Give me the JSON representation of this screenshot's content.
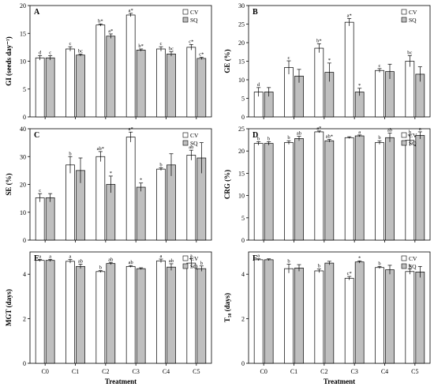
{
  "figure": {
    "xlabel": "Treatment"
  },
  "legend": {
    "cv": "CV",
    "sq": "SQ"
  },
  "colors": {
    "cv": "#ffffff",
    "sq": "#bfbfbf",
    "stroke": "#000000"
  },
  "chart_data": [
    {
      "panel": "A",
      "type": "bar",
      "ylabel": "GI (seeds day⁻¹)",
      "ylim": [
        0,
        20
      ],
      "yticks": [
        0,
        5,
        10,
        15,
        20
      ],
      "categories": [
        "C0",
        "C1",
        "C2",
        "C3",
        "C4",
        "C5"
      ],
      "series": [
        {
          "name": "CV",
          "values": [
            10.6,
            12.2,
            16.5,
            18.3,
            12.2,
            12.5
          ],
          "errors": [
            0.4,
            0.4,
            0.2,
            0.3,
            0.4,
            0.5
          ],
          "labels": [
            "d",
            "c",
            "b*",
            "a*",
            "c",
            "c*"
          ]
        },
        {
          "name": "SQ",
          "values": [
            10.6,
            11.1,
            14.5,
            12.0,
            11.3,
            10.5
          ],
          "errors": [
            0.4,
            0.2,
            0.4,
            0.2,
            0.4,
            0.2
          ],
          "labels": [
            "c",
            "bc",
            "a*",
            "b*",
            "bc",
            "c*"
          ]
        }
      ],
      "legend_position": "top-right"
    },
    {
      "panel": "B",
      "type": "bar",
      "ylabel": "GE (%)",
      "ylim": [
        0,
        30
      ],
      "yticks": [
        0,
        5,
        10,
        15,
        20,
        25,
        30
      ],
      "categories": [
        "C0",
        "C1",
        "C2",
        "C3",
        "C4",
        "C5"
      ],
      "series": [
        {
          "name": "CV",
          "values": [
            6.7,
            13.3,
            18.5,
            25.5,
            12.5,
            15.0
          ],
          "errors": [
            1.2,
            1.8,
            1.2,
            1.0,
            0.5,
            1.5
          ],
          "labels": [
            "d",
            "c",
            "b*",
            "a*",
            "c",
            "bc"
          ]
        },
        {
          "name": "SQ",
          "values": [
            6.7,
            11.0,
            12.0,
            6.7,
            12.2,
            11.5
          ],
          "errors": [
            1.2,
            1.8,
            2.5,
            1.0,
            2.0,
            2.0
          ],
          "labels": [
            "",
            "",
            "*",
            "*",
            "",
            ""
          ]
        }
      ],
      "legend_position": "top-right"
    },
    {
      "panel": "C",
      "type": "bar",
      "ylabel": "SE (%)",
      "ylim": [
        0,
        40
      ],
      "yticks": [
        0,
        10,
        20,
        30,
        40
      ],
      "categories": [
        "C0",
        "C1",
        "C2",
        "C3",
        "C4",
        "C5"
      ],
      "series": [
        {
          "name": "CV",
          "values": [
            15.2,
            27.0,
            30.0,
            37.0,
            25.5,
            30.5
          ],
          "errors": [
            1.5,
            3.0,
            1.8,
            1.8,
            0.5,
            1.8
          ],
          "labels": [
            "c",
            "b",
            "ab*",
            "a*",
            "b",
            "ab"
          ]
        },
        {
          "name": "SQ",
          "values": [
            15.2,
            25.0,
            20.0,
            19.0,
            27.0,
            29.5
          ],
          "errors": [
            1.5,
            4.5,
            3.0,
            1.5,
            4.0,
            5.5
          ],
          "labels": [
            "",
            "",
            "*",
            "*",
            "",
            ""
          ]
        }
      ],
      "legend_position": "top-right"
    },
    {
      "panel": "D",
      "type": "bar",
      "ylabel": "CRG (%)",
      "ylim": [
        0,
        25
      ],
      "yticks": [
        0,
        5,
        10,
        15,
        20,
        25
      ],
      "categories": [
        "C0",
        "C1",
        "C2",
        "C3",
        "C4",
        "C5"
      ],
      "series": [
        {
          "name": "CV",
          "values": [
            21.7,
            21.9,
            24.3,
            23.0,
            21.9,
            22.4
          ],
          "errors": [
            0.4,
            0.4,
            0.2,
            0.2,
            0.4,
            1.2
          ],
          "labels": [
            "b",
            "b",
            "a*",
            "",
            "b",
            "b"
          ]
        },
        {
          "name": "SQ",
          "values": [
            21.7,
            22.8,
            22.3,
            23.4,
            23.0,
            23.5
          ],
          "errors": [
            0.4,
            0.5,
            0.3,
            0.2,
            1.0,
            0.8
          ],
          "labels": [
            "b",
            "ab",
            "ab*",
            "a",
            "ab",
            "a"
          ]
        }
      ],
      "legend_position": "top-right"
    },
    {
      "panel": "E",
      "type": "bar",
      "ylabel": "MGT (days)",
      "ylim": [
        0,
        5
      ],
      "yticks": [
        0,
        2,
        4
      ],
      "categories": [
        "C0",
        "C1",
        "C2",
        "C3",
        "C4",
        "C5"
      ],
      "series": [
        {
          "name": "CV",
          "values": [
            4.62,
            4.58,
            4.12,
            4.35,
            4.6,
            4.5
          ],
          "errors": [
            0.05,
            0.08,
            0.04,
            0.04,
            0.08,
            0.2
          ],
          "labels": [
            "a",
            "a",
            "b",
            "ab",
            "a",
            "a"
          ]
        },
        {
          "name": "SQ",
          "values": [
            4.62,
            4.35,
            4.48,
            4.25,
            4.32,
            4.25
          ],
          "errors": [
            0.05,
            0.1,
            0.05,
            0.04,
            0.15,
            0.12
          ],
          "labels": [
            "a",
            "ab",
            "ab",
            "",
            "ab",
            "b"
          ]
        }
      ],
      "legend_position": "top-right"
    },
    {
      "panel": "F",
      "type": "bar",
      "ylabel": "T₅₀ (days)",
      "ylim": [
        0,
        5
      ],
      "yticks": [
        0,
        2,
        4
      ],
      "categories": [
        "C0",
        "C1",
        "C2",
        "C3",
        "C4",
        "C5"
      ],
      "series": [
        {
          "name": "CV",
          "values": [
            4.65,
            4.25,
            4.15,
            3.82,
            4.3,
            4.12
          ],
          "errors": [
            0.04,
            0.2,
            0.08,
            0.08,
            0.05,
            0.12
          ],
          "labels": [
            "a",
            "b",
            "b",
            "c*",
            "b",
            "b"
          ]
        },
        {
          "name": "SQ",
          "values": [
            4.65,
            4.28,
            4.5,
            4.55,
            4.2,
            4.1
          ],
          "errors": [
            0.04,
            0.15,
            0.08,
            0.05,
            0.2,
            0.25
          ],
          "labels": [
            "",
            "",
            "",
            "*",
            "",
            ""
          ]
        }
      ],
      "legend_position": "top-right"
    }
  ]
}
